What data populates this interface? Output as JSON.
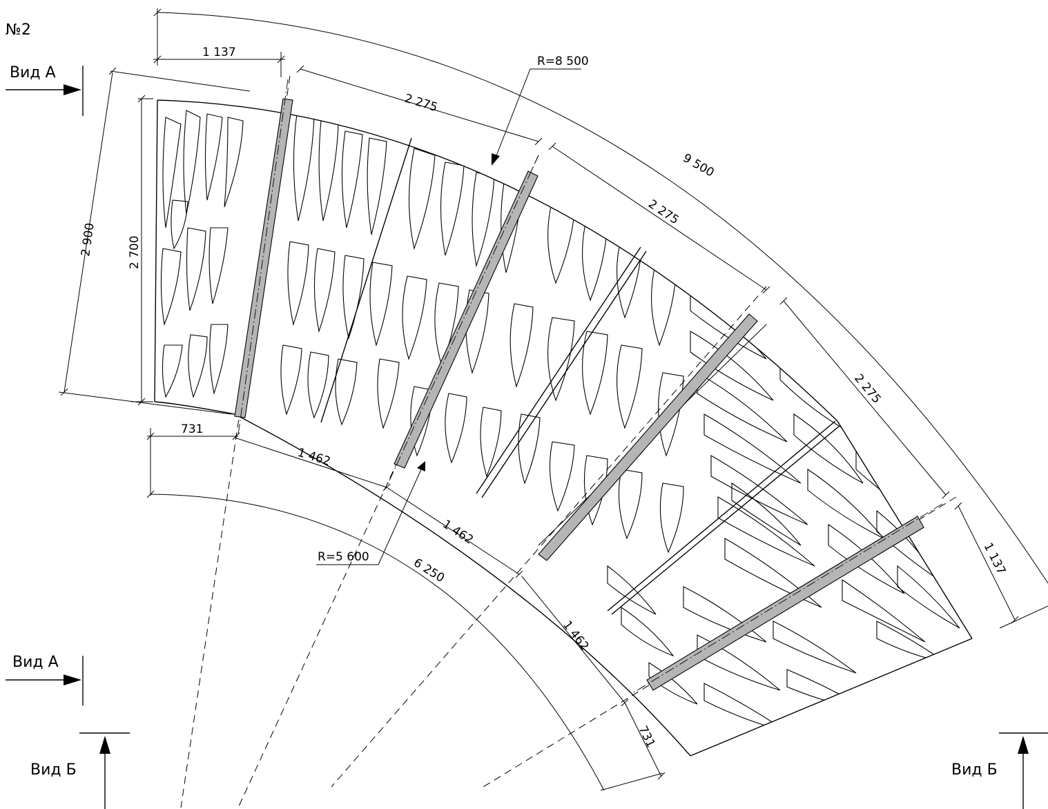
{
  "drawing_number": "№2",
  "views": {
    "view_a_top": "Вид А",
    "view_a_bottom": "Вид А",
    "view_b_left": "Вид Б",
    "view_b_right": "Вид Б"
  },
  "radii": {
    "outer": "R=8 500",
    "inner": "R=5 600"
  },
  "dimensions": {
    "top_offset": "1 137",
    "outer_segment_1": "2 275",
    "outer_segment_2": "2 275",
    "outer_segment_3": "2 275",
    "outer_end": "1 137",
    "outer_arc_total": "9 500",
    "overall_height": "2 900",
    "panel_height": "2 700",
    "inner_offset": "731",
    "inner_segment_1": "1 462",
    "inner_segment_2": "1 462",
    "inner_segment_3": "1 462",
    "inner_end": "731",
    "inner_arc_total": "6 250"
  }
}
